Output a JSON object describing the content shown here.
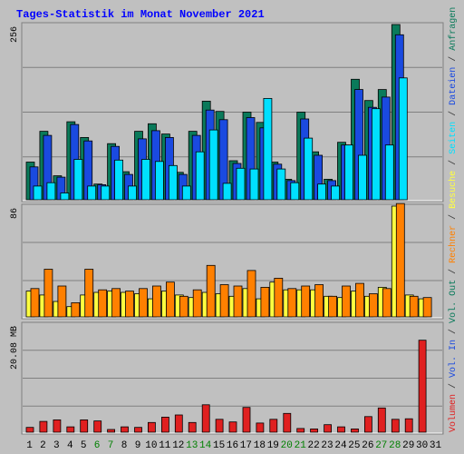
{
  "chart_data": {
    "type": "bar",
    "title": "Tages-Statistik im Monat November 2021",
    "categories": [
      "1",
      "2",
      "3",
      "4",
      "5",
      "6",
      "7",
      "8",
      "9",
      "10",
      "11",
      "12",
      "13",
      "14",
      "15",
      "16",
      "17",
      "18",
      "19",
      "20",
      "21",
      "22",
      "23",
      "24",
      "25",
      "26",
      "27",
      "28",
      "29",
      "30",
      "31"
    ],
    "weekend_days": [
      "6",
      "7",
      "13",
      "14",
      "20",
      "21",
      "27",
      "28"
    ],
    "grid": true,
    "panels": [
      {
        "name": "hits-files-pages",
        "y_max_label": "256",
        "ylim": [
          0,
          256
        ],
        "series": [
          {
            "name": "Anfragen",
            "color": "#0a7a5a",
            "values": [
              55,
              100,
              35,
              114,
              91,
              23,
              82,
              41,
              100,
              111,
              96,
              40,
              100,
              144,
              129,
              57,
              128,
              113,
              55,
              30,
              128,
              70,
              30,
              84,
              176,
              145,
              161,
              256,
              0,
              0,
              0
            ]
          },
          {
            "name": "Dateien",
            "color": "#1a4ae0",
            "values": [
              48,
              94,
              33,
              110,
              86,
              22,
              78,
              37,
              89,
              101,
              91,
              37,
              94,
              131,
              117,
              53,
              120,
              105,
              52,
              28,
              118,
              65,
              28,
              80,
              161,
              135,
              150,
              241,
              0,
              0,
              0
            ]
          },
          {
            "name": "Seiten",
            "color": "#00e0ff",
            "values": [
              20,
              25,
              10,
              59,
              20,
              20,
              58,
              20,
              59,
              56,
              50,
              20,
              70,
              102,
              24,
              46,
              45,
              148,
              45,
              25,
              90,
              23,
              20,
              80,
              65,
              133,
              80,
              178,
              0,
              0,
              0
            ]
          }
        ]
      },
      {
        "name": "visits-sites",
        "y_max_label": "86",
        "ylim": [
          0,
          86
        ],
        "series": [
          {
            "name": "Besuche",
            "color": "#ffff40",
            "values": [
              20,
              17,
              12,
              8,
              17,
              19,
              20,
              19,
              18,
              14,
              20,
              17,
              15,
              19,
              18,
              16,
              22,
              14,
              27,
              21,
              21,
              21,
              16,
              15,
              20,
              16,
              23,
              86,
              17,
              14,
              0
            ]
          },
          {
            "name": "Rechner",
            "color": "#ff8000",
            "values": [
              22,
              37,
              24,
              11,
              37,
              21,
              22,
              20,
              22,
              24,
              27,
              16,
              21,
              40,
              25,
              24,
              36,
              23,
              30,
              22,
              24,
              25,
              16,
              24,
              26,
              18,
              22,
              88,
              16,
              15,
              0
            ]
          }
        ]
      },
      {
        "name": "volume",
        "y_max_label": "20.08 MB",
        "ylim": [
          0,
          20.08
        ],
        "series": [
          {
            "name": "Volumen",
            "color": "#e02020",
            "values": [
              0.9,
              2.0,
              2.3,
              1.0,
              2.3,
              2.1,
              0.5,
              1.0,
              0.9,
              1.8,
              2.8,
              3.2,
              1.8,
              5.1,
              2.4,
              1.9,
              4.6,
              1.7,
              2.4,
              3.5,
              0.7,
              0.6,
              1.4,
              1.0,
              0.6,
              2.9,
              4.5,
              2.4,
              2.5,
              17.1,
              0
            ]
          }
        ]
      }
    ],
    "right_axis_label_parts": [
      {
        "text": "Volumen",
        "color": "#e02020"
      },
      {
        "text": " / ",
        "color": "#404040"
      },
      {
        "text": "Vol. In",
        "color": "#1a4ae0"
      },
      {
        "text": " / ",
        "color": "#404040"
      },
      {
        "text": "Vol. Out",
        "color": "#0a7a5a"
      },
      {
        "text": " / ",
        "color": "#404040"
      },
      {
        "text": "Rechner",
        "color": "#ff8000"
      },
      {
        "text": " / ",
        "color": "#404040"
      },
      {
        "text": "Besuche",
        "color": "#ffff40"
      },
      {
        "text": " / ",
        "color": "#404040"
      },
      {
        "text": "Seiten",
        "color": "#00e0ff"
      },
      {
        "text": " / ",
        "color": "#404040"
      },
      {
        "text": "Dateien",
        "color": "#1a4ae0"
      },
      {
        "text": " / ",
        "color": "#404040"
      },
      {
        "text": "Anfragen",
        "color": "#0a7a5a"
      }
    ],
    "colors": {
      "background": "#c0c0c0",
      "title": "#0000ff",
      "weekday_label": "#000000",
      "weekend_label": "#008000",
      "axis_text": "#000000"
    }
  }
}
